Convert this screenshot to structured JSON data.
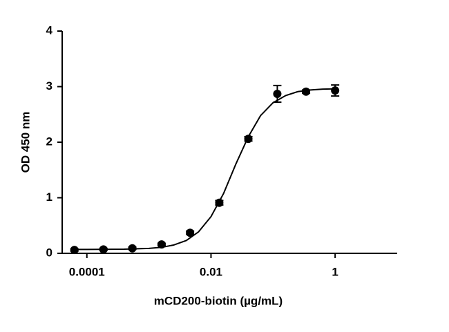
{
  "chart_data": {
    "type": "scatter",
    "x_label": "mCD200-biotin (µg/mL)",
    "y_label": "OD 450 nm",
    "x": [
      6.3e-05,
      0.000185,
      0.00054,
      0.0016,
      0.0046,
      0.0136,
      0.04,
      0.117,
      0.34,
      1
    ],
    "series": [
      {
        "color": "#000000",
        "values": [
          0.06,
          0.07,
          0.09,
          0.16,
          0.37,
          0.91,
          2.06,
          2.87,
          2.91,
          2.93
        ],
        "errors": [
          0.02,
          0.02,
          0.02,
          0.02,
          0.03,
          0.04,
          0.04,
          0.15,
          0.03,
          0.1
        ]
      }
    ],
    "fit": {
      "x": [
        6.3e-05,
        0.00016,
        0.0004,
        0.001,
        0.0016,
        0.0025,
        0.004,
        0.0063,
        0.01,
        0.016,
        0.025,
        0.04,
        0.063,
        0.1,
        0.16,
        0.25,
        0.4,
        0.63,
        1
      ],
      "values": [
        0.07,
        0.071,
        0.074,
        0.089,
        0.108,
        0.149,
        0.23,
        0.386,
        0.66,
        1.08,
        1.6,
        2.1,
        2.48,
        2.71,
        2.84,
        2.91,
        2.94,
        2.955,
        2.96
      ]
    },
    "x_log": true,
    "xlim": [
      4e-05,
      10
    ],
    "xticks": [
      0.0001,
      0.01,
      1
    ],
    "ylim": [
      0,
      4
    ],
    "yticks": [
      0,
      1,
      2,
      3,
      4
    ]
  }
}
